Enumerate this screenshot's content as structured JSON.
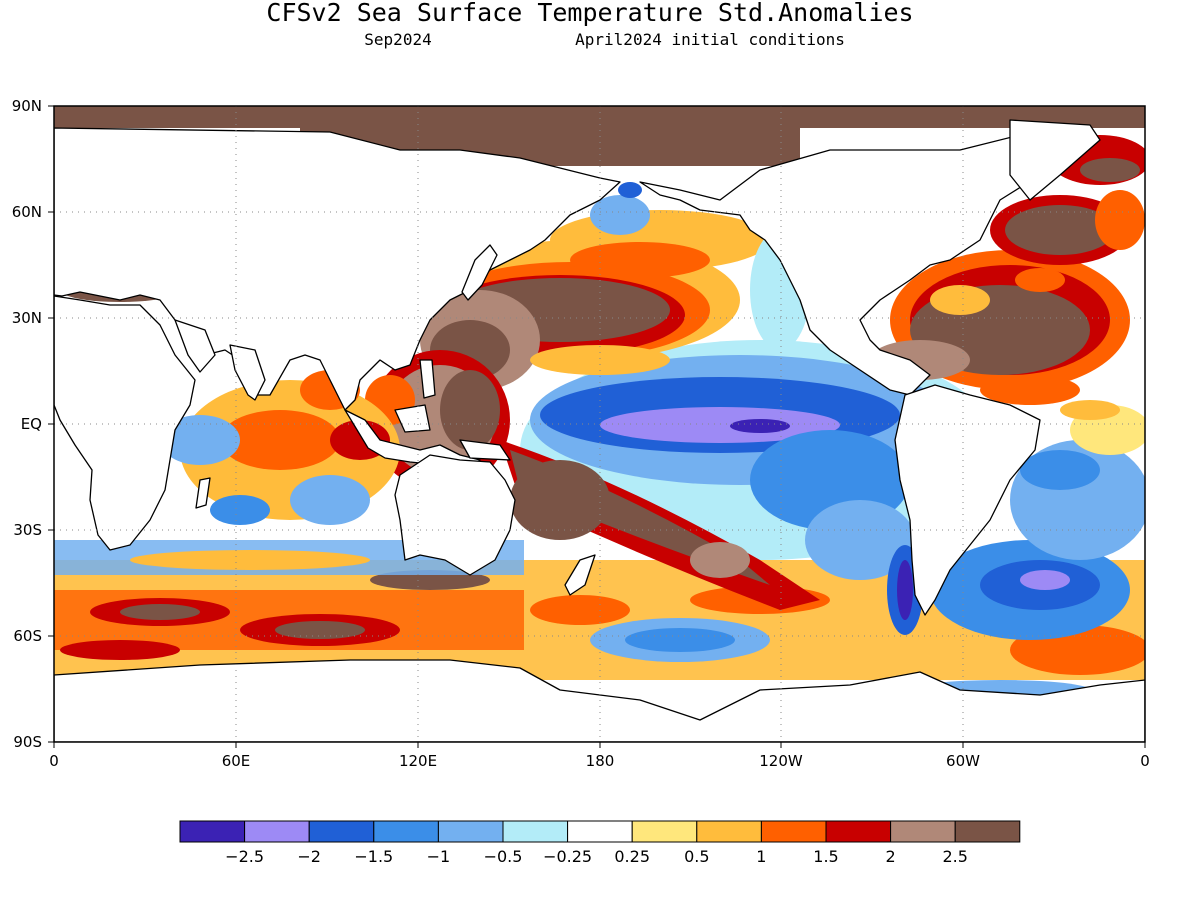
{
  "title": "CFSv2 Sea Surface Temperature Std.Anomalies",
  "subtitle_left": "Sep2024",
  "subtitle_right": "April2024 initial conditions",
  "map": {
    "lat_ticks": [
      "90N",
      "60N",
      "30N",
      "EQ",
      "30S",
      "60S",
      "90S"
    ],
    "lon_ticks": [
      "0",
      "60E",
      "120E",
      "180",
      "120W",
      "60W",
      "0"
    ],
    "land_color": "#ffffff",
    "gridlines": "dotted"
  },
  "colorbar": {
    "colors": [
      "#3b22b4",
      "#9d8af5",
      "#2060d6",
      "#3b8ee8",
      "#73b0f0",
      "#b3ecf8",
      "#ffffff",
      "#ffe77c",
      "#ffbc3c",
      "#ff6000",
      "#c80000",
      "#b08878",
      "#7a5446"
    ],
    "labels": [
      "−2.5",
      "−2",
      "−1.5",
      "−1",
      "−0.5",
      "−0.25",
      "0.25",
      "0.5",
      "1",
      "1.5",
      "2",
      "2.5"
    ]
  }
}
